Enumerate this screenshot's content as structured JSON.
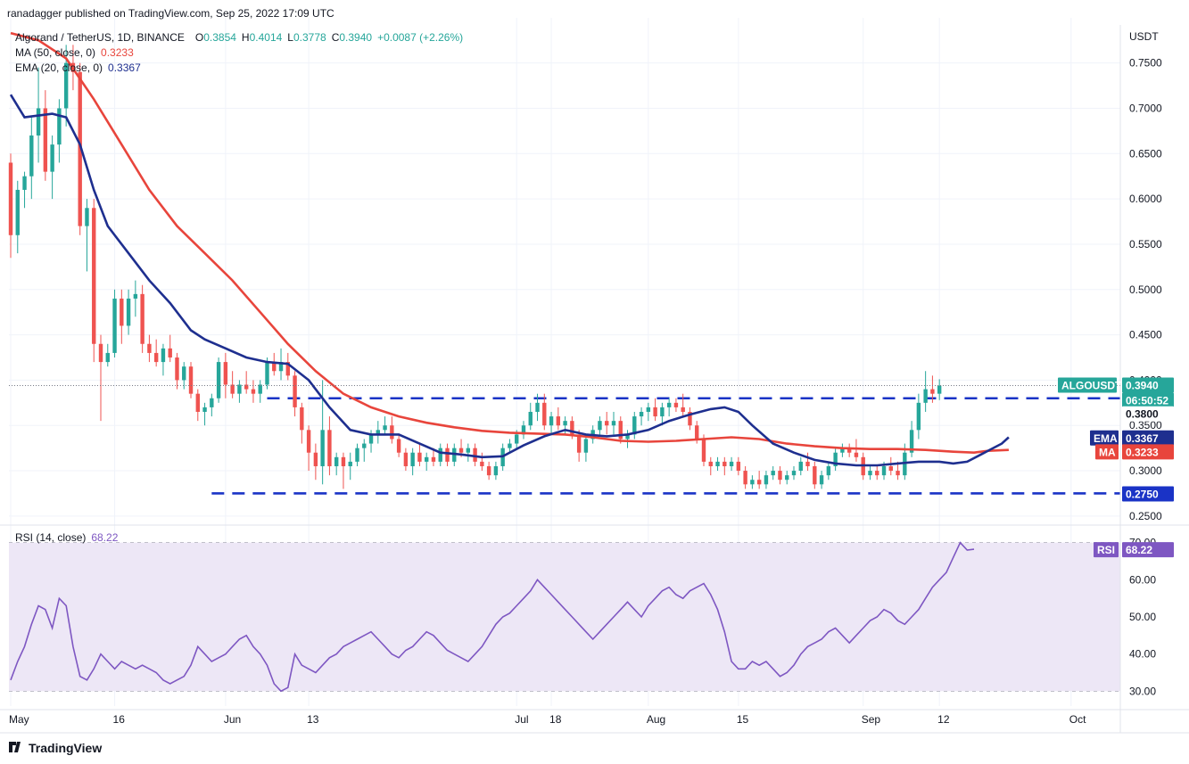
{
  "header": {
    "publisher_line": "ranadagger published on TradingView.com, Sep 25, 2022 17:09 UTC"
  },
  "legend": {
    "symbol": "Algorand / TetherUS, 1D, BINANCE",
    "o_label": "O",
    "o_value": "0.3854",
    "h_label": "H",
    "h_value": "0.4014",
    "l_label": "L",
    "l_value": "0.3778",
    "c_label": "C",
    "c_value": "0.3940",
    "change": "+0.0087 (+2.26%)",
    "ma_text": "MA (50, close, 0)",
    "ma_value": "0.3233",
    "ema_text": "EMA (20, close, 0)",
    "ema_value": "0.3367",
    "rsi_text": "RSI (14, close)",
    "rsi_value": "68.22"
  },
  "footer": {
    "brand": "TradingView"
  },
  "colors": {
    "up": "#26a69a",
    "down": "#ef5350",
    "ema": "#1e2f8f",
    "ma": "#e8453c",
    "rsi": "#7e57c2",
    "rsi_band": "#ede7f6",
    "level": "#1a33c6",
    "grid": "#f0f3fa"
  },
  "chart_data": {
    "type": "candlestick",
    "title": "Algorand / TetherUS, 1D, BINANCE",
    "currency_label": "USDT",
    "y_ticks": [
      "0.2500",
      "0.3000",
      "0.3500",
      "0.4000",
      "0.4500",
      "0.5000",
      "0.5500",
      "0.6000",
      "0.6500",
      "0.7000",
      "0.7500"
    ],
    "y_tick_values": [
      0.25,
      0.3,
      0.35,
      0.4,
      0.45,
      0.5,
      0.55,
      0.6,
      0.65,
      0.7,
      0.75
    ],
    "ylim": [
      0.243,
      0.79
    ],
    "x_labels": [
      "May",
      "16",
      "Jun",
      "13",
      "Jul",
      "18",
      "Aug",
      "15",
      "Sep",
      "12",
      "Oct"
    ],
    "x_label_days": [
      0,
      15,
      31,
      43,
      73,
      78,
      92,
      105,
      123,
      134,
      153
    ],
    "total_days": 154,
    "candles": [
      [
        0.64,
        0.65,
        0.535,
        0.56
      ],
      [
        0.56,
        0.62,
        0.54,
        0.61
      ],
      [
        0.61,
        0.63,
        0.59,
        0.625
      ],
      [
        0.625,
        0.69,
        0.6,
        0.67
      ],
      [
        0.67,
        0.745,
        0.64,
        0.7
      ],
      [
        0.7,
        0.72,
        0.62,
        0.63
      ],
      [
        0.63,
        0.67,
        0.6,
        0.66
      ],
      [
        0.66,
        0.71,
        0.64,
        0.7
      ],
      [
        0.7,
        0.77,
        0.68,
        0.75
      ],
      [
        0.75,
        0.77,
        0.72,
        0.74
      ],
      [
        0.74,
        0.75,
        0.56,
        0.57
      ],
      [
        0.57,
        0.6,
        0.52,
        0.59
      ],
      [
        0.59,
        0.6,
        0.42,
        0.44
      ],
      [
        0.44,
        0.45,
        0.355,
        0.42
      ],
      [
        0.42,
        0.44,
        0.415,
        0.43
      ],
      [
        0.43,
        0.5,
        0.425,
        0.49
      ],
      [
        0.49,
        0.5,
        0.44,
        0.46
      ],
      [
        0.46,
        0.5,
        0.45,
        0.49
      ],
      [
        0.49,
        0.51,
        0.47,
        0.495
      ],
      [
        0.495,
        0.505,
        0.43,
        0.44
      ],
      [
        0.44,
        0.45,
        0.42,
        0.43
      ],
      [
        0.43,
        0.445,
        0.415,
        0.42
      ],
      [
        0.42,
        0.44,
        0.405,
        0.435
      ],
      [
        0.435,
        0.45,
        0.42,
        0.425
      ],
      [
        0.425,
        0.43,
        0.39,
        0.4
      ],
      [
        0.4,
        0.42,
        0.39,
        0.415
      ],
      [
        0.415,
        0.42,
        0.38,
        0.385
      ],
      [
        0.385,
        0.39,
        0.355,
        0.365
      ],
      [
        0.365,
        0.375,
        0.35,
        0.37
      ],
      [
        0.37,
        0.385,
        0.36,
        0.38
      ],
      [
        0.38,
        0.425,
        0.375,
        0.42
      ],
      [
        0.42,
        0.43,
        0.38,
        0.395
      ],
      [
        0.395,
        0.41,
        0.38,
        0.385
      ],
      [
        0.385,
        0.4,
        0.375,
        0.395
      ],
      [
        0.395,
        0.41,
        0.385,
        0.39
      ],
      [
        0.39,
        0.4,
        0.375,
        0.385
      ],
      [
        0.385,
        0.4,
        0.375,
        0.395
      ],
      [
        0.395,
        0.425,
        0.39,
        0.42
      ],
      [
        0.42,
        0.43,
        0.405,
        0.41
      ],
      [
        0.41,
        0.435,
        0.4,
        0.42
      ],
      [
        0.42,
        0.43,
        0.4,
        0.405
      ],
      [
        0.405,
        0.41,
        0.36,
        0.37
      ],
      [
        0.37,
        0.375,
        0.33,
        0.345
      ],
      [
        0.345,
        0.35,
        0.3,
        0.32
      ],
      [
        0.32,
        0.33,
        0.29,
        0.305
      ],
      [
        0.305,
        0.4,
        0.285,
        0.345
      ],
      [
        0.345,
        0.36,
        0.295,
        0.305
      ],
      [
        0.305,
        0.32,
        0.295,
        0.315
      ],
      [
        0.315,
        0.32,
        0.28,
        0.305
      ],
      [
        0.305,
        0.32,
        0.29,
        0.31
      ],
      [
        0.31,
        0.33,
        0.305,
        0.325
      ],
      [
        0.325,
        0.335,
        0.31,
        0.33
      ],
      [
        0.33,
        0.345,
        0.32,
        0.34
      ],
      [
        0.34,
        0.355,
        0.33,
        0.345
      ],
      [
        0.345,
        0.36,
        0.34,
        0.35
      ],
      [
        0.35,
        0.36,
        0.33,
        0.335
      ],
      [
        0.335,
        0.34,
        0.315,
        0.32
      ],
      [
        0.32,
        0.325,
        0.3,
        0.305
      ],
      [
        0.305,
        0.325,
        0.295,
        0.32
      ],
      [
        0.32,
        0.33,
        0.305,
        0.31
      ],
      [
        0.31,
        0.32,
        0.3,
        0.315
      ],
      [
        0.315,
        0.325,
        0.305,
        0.31
      ],
      [
        0.31,
        0.33,
        0.305,
        0.325
      ],
      [
        0.325,
        0.33,
        0.305,
        0.31
      ],
      [
        0.31,
        0.33,
        0.305,
        0.325
      ],
      [
        0.325,
        0.335,
        0.315,
        0.32
      ],
      [
        0.32,
        0.33,
        0.31,
        0.325
      ],
      [
        0.325,
        0.33,
        0.305,
        0.31
      ],
      [
        0.31,
        0.32,
        0.3,
        0.305
      ],
      [
        0.305,
        0.31,
        0.29,
        0.295
      ],
      [
        0.295,
        0.31,
        0.29,
        0.305
      ],
      [
        0.305,
        0.33,
        0.3,
        0.325
      ],
      [
        0.325,
        0.335,
        0.32,
        0.33
      ],
      [
        0.33,
        0.345,
        0.325,
        0.34
      ],
      [
        0.34,
        0.355,
        0.335,
        0.35
      ],
      [
        0.35,
        0.375,
        0.345,
        0.365
      ],
      [
        0.365,
        0.385,
        0.355,
        0.375
      ],
      [
        0.375,
        0.385,
        0.345,
        0.35
      ],
      [
        0.35,
        0.365,
        0.34,
        0.36
      ],
      [
        0.36,
        0.37,
        0.345,
        0.35
      ],
      [
        0.35,
        0.36,
        0.34,
        0.355
      ],
      [
        0.355,
        0.36,
        0.335,
        0.34
      ],
      [
        0.34,
        0.345,
        0.31,
        0.32
      ],
      [
        0.32,
        0.34,
        0.31,
        0.335
      ],
      [
        0.335,
        0.35,
        0.33,
        0.345
      ],
      [
        0.345,
        0.36,
        0.34,
        0.355
      ],
      [
        0.355,
        0.365,
        0.34,
        0.35
      ],
      [
        0.35,
        0.365,
        0.34,
        0.355
      ],
      [
        0.355,
        0.36,
        0.33,
        0.335
      ],
      [
        0.335,
        0.345,
        0.325,
        0.34
      ],
      [
        0.34,
        0.365,
        0.335,
        0.36
      ],
      [
        0.36,
        0.37,
        0.35,
        0.365
      ],
      [
        0.365,
        0.375,
        0.355,
        0.37
      ],
      [
        0.37,
        0.38,
        0.355,
        0.36
      ],
      [
        0.36,
        0.375,
        0.35,
        0.37
      ],
      [
        0.37,
        0.38,
        0.36,
        0.375
      ],
      [
        0.375,
        0.38,
        0.365,
        0.37
      ],
      [
        0.37,
        0.385,
        0.36,
        0.365
      ],
      [
        0.365,
        0.37,
        0.345,
        0.35
      ],
      [
        0.35,
        0.355,
        0.33,
        0.335
      ],
      [
        0.335,
        0.34,
        0.305,
        0.31
      ],
      [
        0.31,
        0.315,
        0.295,
        0.305
      ],
      [
        0.305,
        0.315,
        0.3,
        0.31
      ],
      [
        0.31,
        0.315,
        0.295,
        0.305
      ],
      [
        0.305,
        0.315,
        0.3,
        0.31
      ],
      [
        0.31,
        0.315,
        0.295,
        0.3
      ],
      [
        0.3,
        0.305,
        0.28,
        0.285
      ],
      [
        0.285,
        0.295,
        0.28,
        0.29
      ],
      [
        0.29,
        0.3,
        0.28,
        0.285
      ],
      [
        0.285,
        0.3,
        0.28,
        0.295
      ],
      [
        0.295,
        0.305,
        0.29,
        0.3
      ],
      [
        0.3,
        0.305,
        0.285,
        0.29
      ],
      [
        0.29,
        0.3,
        0.285,
        0.295
      ],
      [
        0.295,
        0.305,
        0.29,
        0.3
      ],
      [
        0.3,
        0.315,
        0.295,
        0.31
      ],
      [
        0.31,
        0.32,
        0.3,
        0.305
      ],
      [
        0.305,
        0.31,
        0.28,
        0.285
      ],
      [
        0.285,
        0.3,
        0.28,
        0.295
      ],
      [
        0.295,
        0.31,
        0.29,
        0.305
      ],
      [
        0.305,
        0.325,
        0.3,
        0.32
      ],
      [
        0.32,
        0.33,
        0.315,
        0.325
      ],
      [
        0.325,
        0.33,
        0.315,
        0.32
      ],
      [
        0.32,
        0.335,
        0.31,
        0.315
      ],
      [
        0.315,
        0.32,
        0.29,
        0.295
      ],
      [
        0.295,
        0.305,
        0.29,
        0.3
      ],
      [
        0.3,
        0.305,
        0.29,
        0.295
      ],
      [
        0.295,
        0.31,
        0.29,
        0.305
      ],
      [
        0.305,
        0.315,
        0.295,
        0.3
      ],
      [
        0.3,
        0.31,
        0.29,
        0.295
      ],
      [
        0.295,
        0.33,
        0.29,
        0.32
      ],
      [
        0.32,
        0.355,
        0.315,
        0.345
      ],
      [
        0.345,
        0.385,
        0.335,
        0.375
      ],
      [
        0.375,
        0.41,
        0.365,
        0.39
      ],
      [
        0.39,
        0.405,
        0.375,
        0.385
      ],
      [
        0.385,
        0.401,
        0.378,
        0.394
      ]
    ],
    "ema20": [
      [
        0,
        0.715
      ],
      [
        2,
        0.69
      ],
      [
        4,
        0.692
      ],
      [
        6,
        0.694
      ],
      [
        8,
        0.69
      ],
      [
        10,
        0.66
      ],
      [
        12,
        0.61
      ],
      [
        14,
        0.57
      ],
      [
        17,
        0.54
      ],
      [
        20,
        0.51
      ],
      [
        23,
        0.485
      ],
      [
        26,
        0.455
      ],
      [
        28,
        0.445
      ],
      [
        31,
        0.435
      ],
      [
        34,
        0.425
      ],
      [
        37,
        0.42
      ],
      [
        40,
        0.418
      ],
      [
        43,
        0.4
      ],
      [
        46,
        0.37
      ],
      [
        49,
        0.345
      ],
      [
        52,
        0.34
      ],
      [
        56,
        0.34
      ],
      [
        59,
        0.33
      ],
      [
        62,
        0.32
      ],
      [
        65,
        0.318
      ],
      [
        68,
        0.315
      ],
      [
        71,
        0.316
      ],
      [
        74,
        0.328
      ],
      [
        77,
        0.338
      ],
      [
        80,
        0.345
      ],
      [
        83,
        0.34
      ],
      [
        86,
        0.338
      ],
      [
        89,
        0.34
      ],
      [
        92,
        0.345
      ],
      [
        95,
        0.355
      ],
      [
        98,
        0.362
      ],
      [
        101,
        0.368
      ],
      [
        103,
        0.37
      ],
      [
        105,
        0.365
      ],
      [
        107,
        0.35
      ],
      [
        110,
        0.33
      ],
      [
        113,
        0.32
      ],
      [
        116,
        0.312
      ],
      [
        119,
        0.308
      ],
      [
        122,
        0.306
      ],
      [
        125,
        0.306
      ],
      [
        128,
        0.308
      ],
      [
        131,
        0.31
      ],
      [
        134,
        0.31
      ],
      [
        136,
        0.308
      ],
      [
        138,
        0.31
      ],
      [
        140,
        0.318
      ],
      [
        143,
        0.33
      ],
      [
        144,
        0.337
      ]
    ],
    "ma50": [
      [
        0,
        0.783
      ],
      [
        4,
        0.775
      ],
      [
        8,
        0.755
      ],
      [
        12,
        0.71
      ],
      [
        16,
        0.66
      ],
      [
        20,
        0.61
      ],
      [
        24,
        0.57
      ],
      [
        28,
        0.54
      ],
      [
        32,
        0.51
      ],
      [
        36,
        0.475
      ],
      [
        40,
        0.44
      ],
      [
        44,
        0.41
      ],
      [
        48,
        0.385
      ],
      [
        52,
        0.37
      ],
      [
        56,
        0.36
      ],
      [
        60,
        0.353
      ],
      [
        64,
        0.348
      ],
      [
        68,
        0.344
      ],
      [
        72,
        0.342
      ],
      [
        76,
        0.341
      ],
      [
        80,
        0.34
      ],
      [
        84,
        0.337
      ],
      [
        88,
        0.333
      ],
      [
        92,
        0.332
      ],
      [
        96,
        0.333
      ],
      [
        100,
        0.335
      ],
      [
        104,
        0.337
      ],
      [
        108,
        0.335
      ],
      [
        112,
        0.33
      ],
      [
        116,
        0.327
      ],
      [
        120,
        0.325
      ],
      [
        124,
        0.324
      ],
      [
        128,
        0.324
      ],
      [
        132,
        0.323
      ],
      [
        136,
        0.321
      ],
      [
        139,
        0.32
      ],
      [
        141,
        0.322
      ],
      [
        144,
        0.323
      ]
    ],
    "levels": [
      {
        "value": 0.38,
        "label": "0.3800",
        "from_day": 37
      },
      {
        "value": 0.275,
        "label": "0.2750",
        "from_day": 29
      }
    ],
    "last_price": {
      "symbol": "ALGOUSDT",
      "price": "0.3940",
      "countdown": "06:50:52",
      "value": 0.394
    },
    "ema_tag": {
      "label": "EMA",
      "value": "0.3367",
      "y": 0.3367
    },
    "ma_tag": {
      "label": "MA",
      "value": "0.3233",
      "y": 0.3233
    },
    "rsi": {
      "ylim": [
        26,
        74
      ],
      "y_ticks": [
        "30.00",
        "40.00",
        "50.00",
        "60.00",
        "70.00"
      ],
      "y_tick_values": [
        30,
        40,
        50,
        60,
        70
      ],
      "band": [
        30,
        70
      ],
      "label": "RSI",
      "value": "68.22",
      "current": 68.22,
      "values": [
        33,
        38,
        42,
        48,
        53,
        52,
        47,
        55,
        53,
        42,
        34,
        33,
        36,
        40,
        38,
        36,
        38,
        37,
        36,
        37,
        36,
        35,
        33,
        32,
        33,
        34,
        37,
        42,
        40,
        38,
        39,
        40,
        42,
        44,
        45,
        42,
        40,
        37,
        32,
        30,
        31,
        40,
        37,
        36,
        35,
        37,
        39,
        40,
        42,
        43,
        44,
        45,
        46,
        44,
        42,
        40,
        39,
        41,
        42,
        44,
        46,
        45,
        43,
        41,
        40,
        39,
        38,
        40,
        42,
        45,
        48,
        50,
        51,
        53,
        55,
        57,
        60,
        58,
        56,
        54,
        52,
        50,
        48,
        46,
        44,
        46,
        48,
        50,
        52,
        54,
        52,
        50,
        53,
        55,
        57,
        58,
        56,
        55,
        57,
        58,
        59,
        56,
        52,
        46,
        38,
        36,
        36,
        38,
        37,
        38,
        36,
        34,
        35,
        37,
        40,
        42,
        43,
        44,
        46,
        47,
        45,
        43,
        45,
        47,
        49,
        50,
        52,
        51,
        49,
        48,
        50,
        52,
        55,
        58,
        60,
        62,
        66,
        70,
        68,
        68.22
      ]
    }
  }
}
